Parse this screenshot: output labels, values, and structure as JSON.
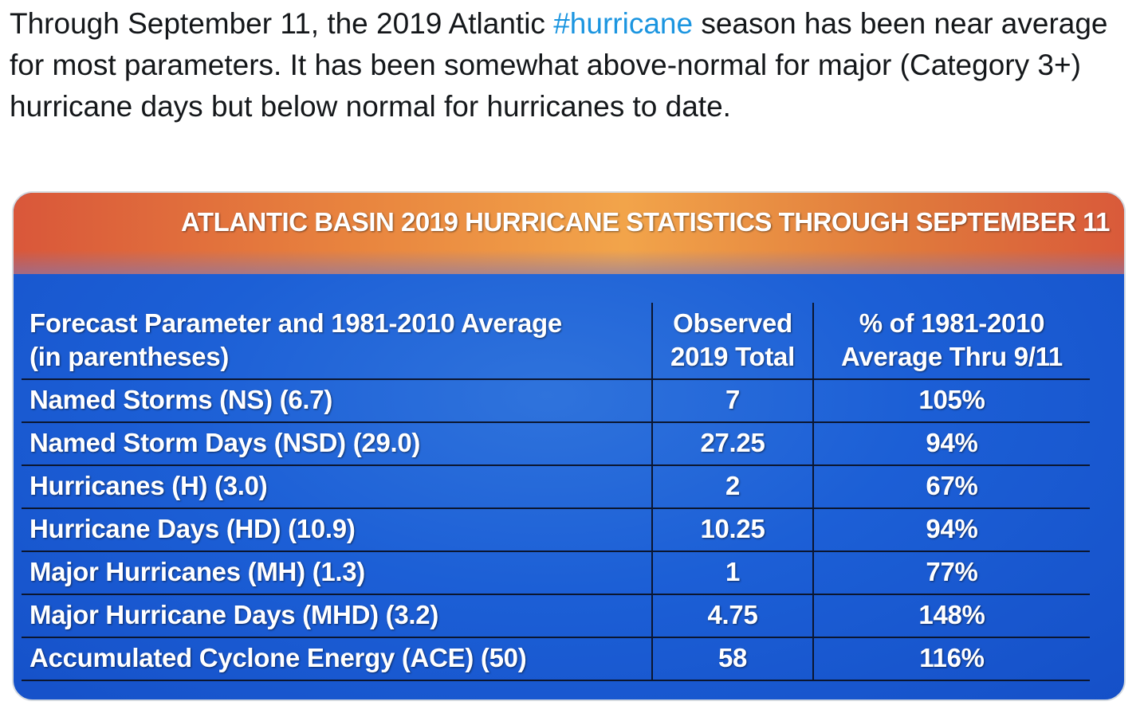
{
  "tweet": {
    "text_before": "Through September 11, the 2019 Atlantic ",
    "hashtag": "#hurricane",
    "text_after": " season has been near average for most parameters.  It has been somewhat above-normal for major (Category 3+) hurricane days but below normal for hurricanes to date."
  },
  "image": {
    "title": "ATLANTIC BASIN 2019 HURRICANE STATISTICS THROUGH SEPTEMBER 11",
    "table": {
      "header": [
        [
          "Forecast Parameter and 1981-2010 Average",
          "(in parentheses)"
        ],
        [
          "Observed",
          "2019 Total"
        ],
        [
          "% of 1981-2010",
          "Average Thru 9/11"
        ]
      ],
      "rows": [
        [
          "Named Storms (NS) (6.7)",
          "7",
          "105%"
        ],
        [
          "Named Storm Days (NSD) (29.0)",
          "27.25",
          "94%"
        ],
        [
          "Hurricanes (H) (3.0)",
          "2",
          "67%"
        ],
        [
          "Hurricane Days (HD) (10.9)",
          "10.25",
          "94%"
        ],
        [
          "Major Hurricanes (MH) (1.3)",
          "1",
          "77%"
        ],
        [
          "Major Hurricane Days (MHD) (3.2)",
          "4.75",
          "148%"
        ],
        [
          "Accumulated Cyclone Energy (ACE) (50)",
          "58",
          "116%"
        ]
      ]
    }
  }
}
